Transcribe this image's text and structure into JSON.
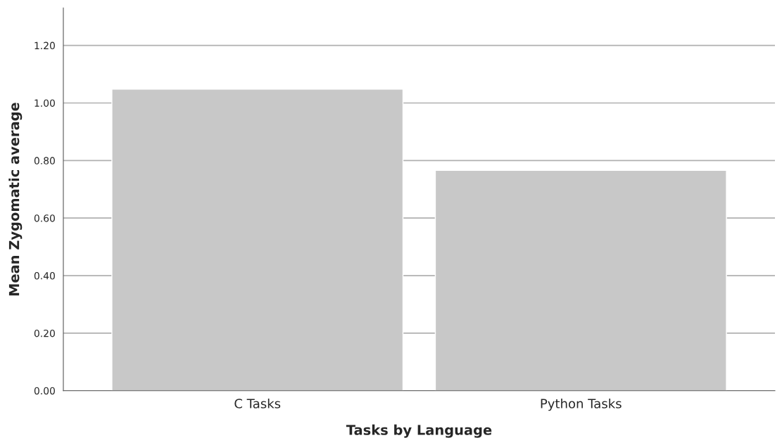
{
  "chart_data": {
    "type": "bar",
    "xlabel": "Tasks by Language",
    "ylabel": "Mean Zygomatic average",
    "categories": [
      "C Tasks",
      "Python Tasks"
    ],
    "values": [
      1.048,
      0.766
    ],
    "color": "#c8c8c8",
    "ylim": [
      0,
      1.33
    ],
    "yticks": [
      {
        "value": 0,
        "label": "0.00"
      },
      {
        "value": 0.2,
        "label": "0.20"
      },
      {
        "value": 0.4,
        "label": "0.40"
      },
      {
        "value": 0.6,
        "label": "0.60"
      },
      {
        "value": 0.8,
        "label": "0.80"
      },
      {
        "value": 1.0,
        "label": "1.00"
      },
      {
        "value": 1.2,
        "label": "1.20"
      }
    ],
    "grid": "y",
    "legend": false
  }
}
